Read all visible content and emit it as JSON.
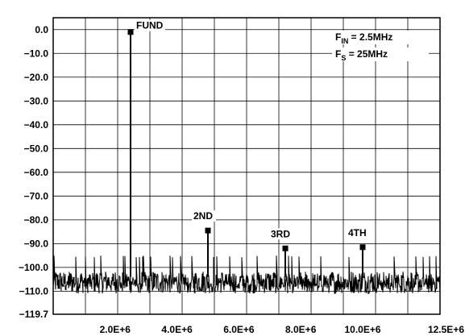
{
  "chart_data": {
    "type": "line",
    "title": "",
    "xlabel": "",
    "ylabel": "",
    "xlim": [
      0,
      12500000
    ],
    "ylim": [
      -119.7,
      5
    ],
    "grid": true,
    "x_ticks": [
      2000000,
      4000000,
      6000000,
      8000000,
      10000000,
      12500000
    ],
    "x_tick_labels": [
      "2.0E+6",
      "4.0E+6",
      "6.0E+6",
      "8.0E+6",
      "10.0E+6",
      "12.5E+6"
    ],
    "y_ticks": [
      0,
      -10,
      -20,
      -30,
      -40,
      -50,
      -60,
      -70,
      -80,
      -90,
      -100,
      -110,
      -119.7
    ],
    "y_tick_labels": [
      "0.0",
      "−10.0",
      "−20.0",
      "−30.0",
      "−40.0",
      "−50.0",
      "−60.0",
      "−70.0",
      "−80.0",
      "−90.0",
      "−100.0",
      "−110.0",
      "−119.7"
    ],
    "noise_floor_db": -106,
    "peaks": [
      {
        "label": "FUND",
        "x": 2500000,
        "y": -1.0
      },
      {
        "label": "2ND",
        "x": 5000000,
        "y": -84.5
      },
      {
        "label": "3RD",
        "x": 7500000,
        "y": -92.0
      },
      {
        "label": "4TH",
        "x": 10000000,
        "y": -91.5
      }
    ],
    "conditions": [
      {
        "name": "F",
        "sub": "IN",
        "value": " = 2.5MHz"
      },
      {
        "name": "F",
        "sub": "S",
        "value": " = 25MHz"
      }
    ]
  }
}
